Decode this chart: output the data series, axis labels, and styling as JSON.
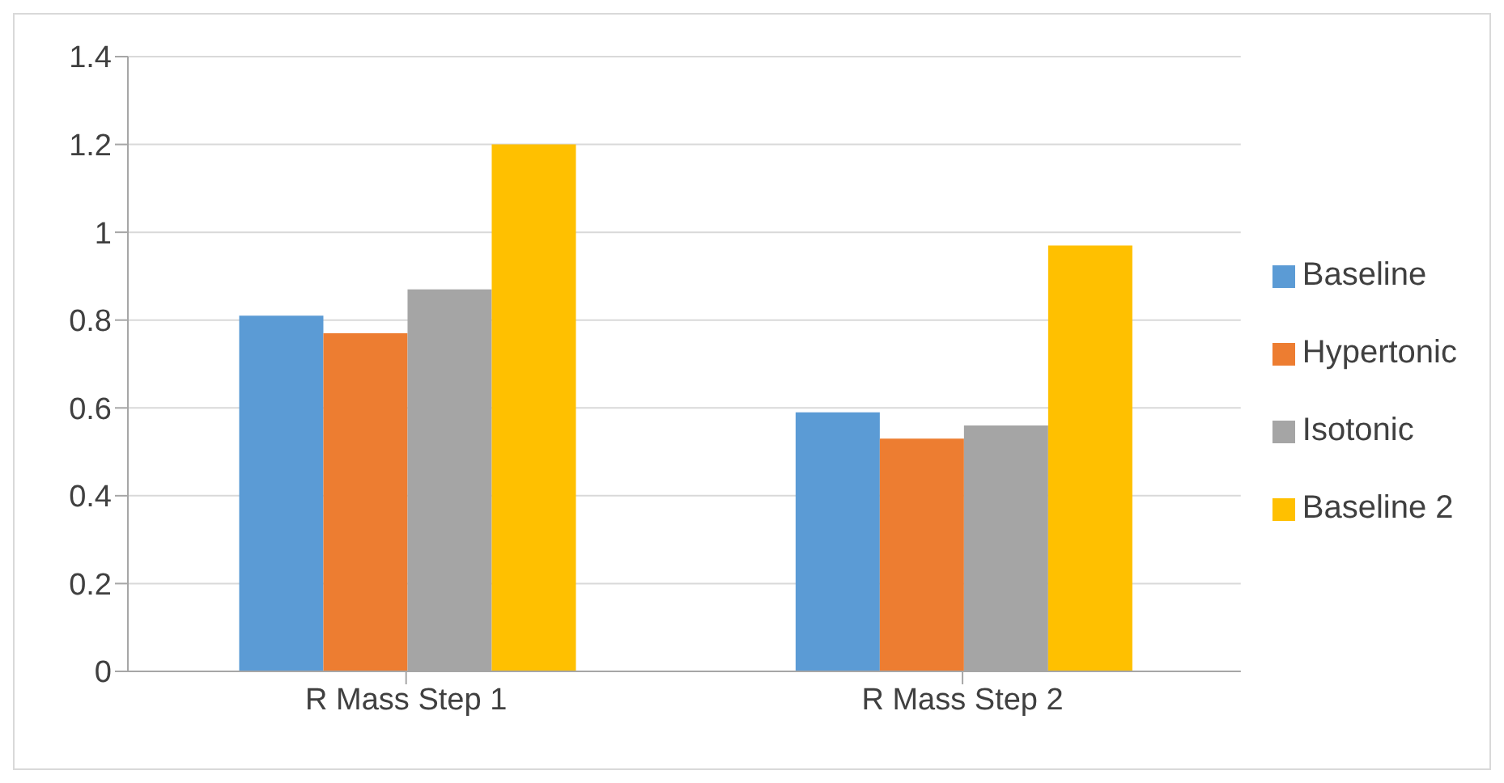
{
  "chart_data": {
    "type": "bar",
    "categories": [
      "R Mass Step 1",
      "R Mass Step 2"
    ],
    "series": [
      {
        "name": "Baseline",
        "color": "#5b9bd5",
        "values": [
          0.81,
          0.59
        ]
      },
      {
        "name": "Hypertonic",
        "color": "#ed7d31",
        "values": [
          0.77,
          0.53
        ]
      },
      {
        "name": "Isotonic",
        "color": "#a5a5a5",
        "values": [
          0.87,
          0.56
        ]
      },
      {
        "name": "Baseline 2",
        "color": "#ffc000",
        "values": [
          1.2,
          0.97
        ]
      }
    ],
    "ylim": [
      0,
      1.4
    ],
    "yticks": [
      0,
      0.2,
      0.4,
      0.6,
      0.8,
      1,
      1.2,
      1.4
    ],
    "grid": "y",
    "legend": "right"
  }
}
